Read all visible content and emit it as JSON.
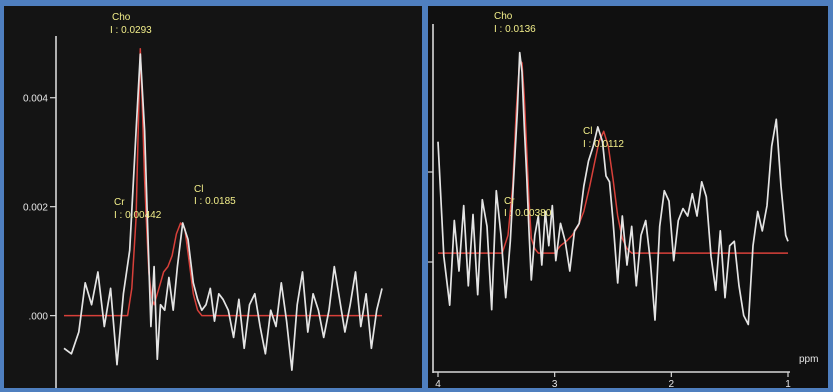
{
  "chart_data": [
    {
      "type": "line",
      "series": [
        {
          "role": "spectrum",
          "color": "#e4e4e4",
          "x": [
            4.0,
            3.93,
            3.86,
            3.8,
            3.74,
            3.68,
            3.62,
            3.56,
            3.5,
            3.44,
            3.38,
            3.32,
            3.28,
            3.24,
            3.21,
            3.18,
            3.15,
            3.12,
            3.09,
            3.05,
            3.01,
            2.97,
            2.93,
            2.88,
            2.83,
            2.78,
            2.74,
            2.7,
            2.66,
            2.62,
            2.58,
            2.54,
            2.5,
            2.45,
            2.4,
            2.35,
            2.3,
            2.25,
            2.2,
            2.15,
            2.1,
            2.05,
            2.0,
            1.95,
            1.9,
            1.85,
            1.8,
            1.75,
            1.7,
            1.65,
            1.6,
            1.55,
            1.5,
            1.45,
            1.4,
            1.35,
            1.3,
            1.25,
            1.2,
            1.15,
            1.1,
            1.05,
            1.0
          ],
          "y": [
            -0.0006,
            -0.0007,
            -0.0003,
            0.0006,
            0.0002,
            0.0008,
            -0.0002,
            0.0005,
            -0.0009,
            0.0004,
            0.0012,
            0.0034,
            0.0048,
            0.0034,
            0.0016,
            -0.0002,
            0.0009,
            -0.0008,
            0.0002,
            0.0001,
            0.0007,
            0.0001,
            0.0009,
            0.0017,
            0.0014,
            0.0006,
            0.0003,
            0.0001,
            0.0002,
            0.0005,
            -0.0001,
            0.0004,
            0.0003,
            0.0001,
            -0.0004,
            0.0003,
            -0.0006,
            0.0002,
            0.0004,
            -0.0002,
            -0.0007,
            0.0001,
            -0.0002,
            0.0006,
            -0.0001,
            -0.001,
            0.0002,
            0.0008,
            -0.0003,
            0.0004,
            0.0001,
            -0.0004,
            0.0001,
            0.0009,
            0.0003,
            -0.0003,
            0.0002,
            0.0008,
            -0.0002,
            0.0004,
            -0.0006,
            0.0001,
            0.0005
          ]
        },
        {
          "role": "fit",
          "color": "#d8403a",
          "x": [
            4.0,
            3.4,
            3.36,
            3.32,
            3.3,
            3.28,
            3.26,
            3.24,
            3.22,
            3.2,
            3.17,
            3.15,
            3.12,
            3.09,
            3.06,
            3.02,
            2.98,
            2.94,
            2.9,
            2.86,
            2.82,
            2.78,
            2.74,
            2.7,
            2.6,
            2.5,
            2.0,
            1.5,
            1.0
          ],
          "y": [
            0.0,
            0.0,
            0.0005,
            0.0018,
            0.0034,
            0.0049,
            0.0038,
            0.0025,
            0.0016,
            0.0008,
            0.0003,
            0.0002,
            0.0004,
            0.0006,
            0.0008,
            0.0009,
            0.0011,
            0.0015,
            0.0017,
            0.0016,
            0.001,
            0.0004,
            0.0001,
            0.0,
            0.0,
            0.0,
            0.0,
            0.0,
            0.0
          ]
        }
      ],
      "yticks": [
        {
          "value": 0.0,
          "label": ".000"
        },
        {
          "value": 0.002,
          "label": "0.002"
        },
        {
          "value": 0.004,
          "label": "0.004"
        }
      ],
      "xlim": [
        4.0,
        1.0
      ],
      "ylim": [
        -0.0012,
        0.0055
      ],
      "annotations": [
        {
          "name": "Cho",
          "integral": "I : 0.0293"
        },
        {
          "name": "Cr",
          "integral": "I : 0.00442"
        },
        {
          "name": "Cl",
          "integral": "I : 0.0185"
        }
      ]
    },
    {
      "type": "line",
      "series": [
        {
          "role": "spectrum",
          "color": "#e4e4e4",
          "x": [
            4.0,
            3.95,
            3.9,
            3.86,
            3.82,
            3.78,
            3.74,
            3.7,
            3.66,
            3.62,
            3.58,
            3.54,
            3.5,
            3.46,
            3.42,
            3.38,
            3.35,
            3.32,
            3.3,
            3.28,
            3.26,
            3.24,
            3.22,
            3.2,
            3.17,
            3.14,
            3.11,
            3.08,
            3.05,
            3.02,
            2.99,
            2.95,
            2.91,
            2.87,
            2.83,
            2.79,
            2.75,
            2.71,
            2.67,
            2.63,
            2.59,
            2.56,
            2.53,
            2.5,
            2.46,
            2.42,
            2.38,
            2.34,
            2.3,
            2.26,
            2.22,
            2.18,
            2.14,
            2.1,
            2.06,
            2.02,
            1.98,
            1.94,
            1.9,
            1.86,
            1.82,
            1.78,
            1.74,
            1.7,
            1.66,
            1.62,
            1.58,
            1.54,
            1.5,
            1.46,
            1.42,
            1.38,
            1.34,
            1.3,
            1.26,
            1.22,
            1.18,
            1.14,
            1.1,
            1.06,
            1.02,
            1.0
          ],
          "y": [
            0.0075,
            -0.0002,
            -0.0035,
            0.0022,
            -0.0012,
            0.0032,
            -0.0022,
            0.0026,
            -0.0028,
            0.0036,
            0.0018,
            -0.0038,
            0.0042,
            0.0012,
            -0.003,
            0.0008,
            0.0052,
            0.0095,
            0.0135,
            0.0122,
            0.0085,
            0.0052,
            0.0015,
            -0.0018,
            0.0012,
            0.0025,
            -0.0008,
            0.0028,
            0.0005,
            0.0032,
            -0.0005,
            0.002,
            0.0008,
            -0.0012,
            0.0015,
            0.002,
            0.0045,
            0.0062,
            0.0072,
            0.0085,
            0.0075,
            0.0052,
            0.0048,
            0.0022,
            -0.002,
            0.0025,
            -0.0008,
            0.0018,
            -0.0022,
            0.0012,
            0.0022,
            -0.0005,
            -0.0045,
            0.0018,
            0.0042,
            0.0035,
            -0.0005,
            0.0022,
            0.003,
            0.0025,
            0.004,
            0.0025,
            0.0048,
            0.0038,
            -0.0002,
            -0.0025,
            0.0015,
            -0.003,
            0.0005,
            0.0008,
            -0.0022,
            -0.0042,
            -0.0048,
            0.0005,
            0.0028,
            0.0015,
            0.0032,
            0.0072,
            0.009,
            0.0045,
            0.0012,
            0.0008
          ]
        },
        {
          "role": "fit",
          "color": "#d8403a",
          "x": [
            4.0,
            3.45,
            3.4,
            3.36,
            3.33,
            3.3,
            3.28,
            3.26,
            3.24,
            3.22,
            3.2,
            3.17,
            3.14,
            3.1,
            3.05,
            3.0,
            2.95,
            2.9,
            2.85,
            2.8,
            2.75,
            2.7,
            2.66,
            2.62,
            2.58,
            2.54,
            2.5,
            2.46,
            2.42,
            2.38,
            2.34,
            2.3,
            2.2,
            2.0,
            1.5,
            1.0
          ],
          "y": [
            0.0,
            0.0,
            0.0012,
            0.0045,
            0.0095,
            0.013,
            0.0128,
            0.0105,
            0.007,
            0.0035,
            0.001,
            0.0003,
            0.0,
            0.0,
            0.0,
            0.0,
            0.0005,
            0.0008,
            0.0012,
            0.0018,
            0.0028,
            0.0045,
            0.006,
            0.0075,
            0.0082,
            0.0072,
            0.005,
            0.0025,
            0.001,
            0.0003,
            0.0,
            0.0,
            0.0,
            0.0,
            0.0,
            0.0
          ]
        }
      ],
      "xticks": [
        {
          "value": 4,
          "label": "4"
        },
        {
          "value": 3,
          "label": "3"
        },
        {
          "value": 2,
          "label": "2"
        },
        {
          "value": 1,
          "label": "1"
        }
      ],
      "xlabel": "ppm",
      "xlim": [
        4.0,
        1.0
      ],
      "ylim": [
        -0.008,
        0.0165
      ],
      "annotations": [
        {
          "name": "Cho",
          "integral": "I : 0.0136"
        },
        {
          "name": "Cr",
          "integral": "I : 0.00380"
        },
        {
          "name": "Cl",
          "integral": "I : 0.0112"
        }
      ]
    }
  ]
}
